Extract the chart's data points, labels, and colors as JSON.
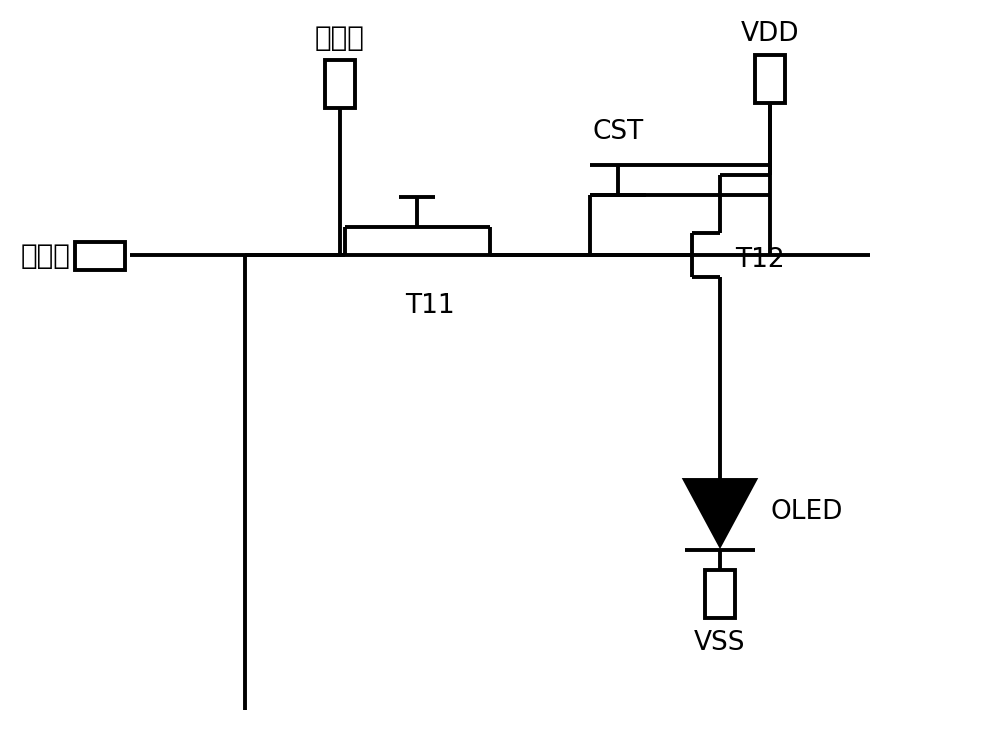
{
  "bg_color": "#ffffff",
  "line_color": "#000000",
  "lw": 2.8,
  "labels": {
    "data_line": "数据线",
    "scan_line": "扫描线",
    "vdd": "VDD",
    "vss": "VSS",
    "oled": "OLED",
    "cst": "CST",
    "t11": "T11",
    "t12": "T12"
  },
  "font_zh": 20,
  "font_en": 19,
  "figw": 10.0,
  "figh": 7.54
}
